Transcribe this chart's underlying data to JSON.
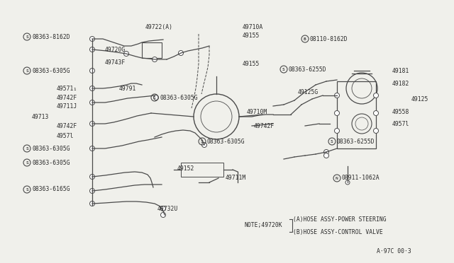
{
  "bg_color": "#f0f0eb",
  "line_color": "#4a4a4a",
  "text_color": "#2a2a2a",
  "diagram_number": "A·97C 00·3",
  "note_text": "NOTE;49720K",
  "note_a": "(A)HOSE ASSY-POWER STEERING",
  "note_b": "(B)HOSE ASSY-CONTROL VALVE",
  "font_size": 5.8
}
